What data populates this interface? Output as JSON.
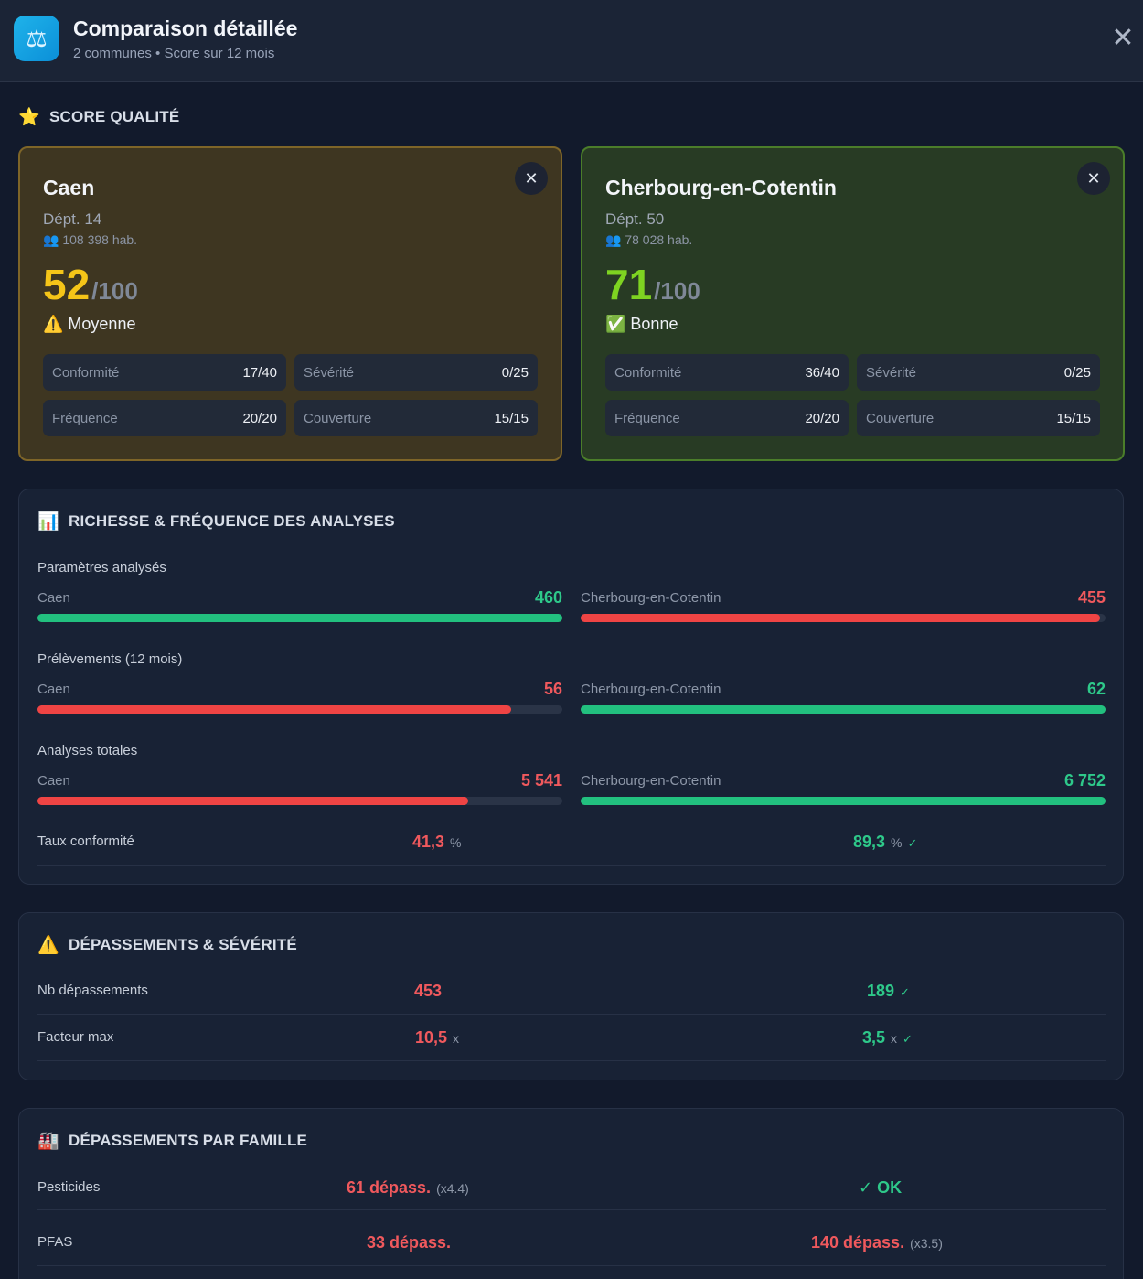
{
  "header": {
    "icon": "scales-icon",
    "title": "Comparaison détaillée",
    "subtitle": "2 communes • Score sur 12 mois",
    "close_label": "✕"
  },
  "score_section": {
    "icon": "⭐",
    "title": "SCORE QUALITÉ"
  },
  "communes": [
    {
      "name": "Caen",
      "dept": "Dépt. 14",
      "population": "👥 108 398 hab.",
      "score": "52",
      "score_max": "/100",
      "score_color": "#f5c518",
      "level": "⚠️ Moyenne",
      "stats": [
        {
          "label": "Conformité",
          "value": "17/40"
        },
        {
          "label": "Sévérité",
          "value": "0/25"
        },
        {
          "label": "Fréquence",
          "value": "20/20"
        },
        {
          "label": "Couverture",
          "value": "15/15"
        }
      ]
    },
    {
      "name": "Cherbourg-en-Cotentin",
      "dept": "Dépt. 50",
      "population": "👥 78 028 hab.",
      "score": "71",
      "score_max": "/100",
      "score_color": "#7ed321",
      "level": "✅ Bonne",
      "stats": [
        {
          "label": "Conformité",
          "value": "36/40"
        },
        {
          "label": "Sévérité",
          "value": "0/25"
        },
        {
          "label": "Fréquence",
          "value": "20/20"
        },
        {
          "label": "Couverture",
          "value": "15/15"
        }
      ]
    }
  ],
  "richesse": {
    "icon": "📊",
    "title": "RICHESSE & FRÉQUENCE DES ANALYSES",
    "metrics": [
      {
        "label": "Paramètres analysés",
        "a_name": "Caen",
        "a_value": "460",
        "b_name": "Cherbourg-en-Cotentin",
        "b_value": "455",
        "a_fill": 1.0,
        "b_fill": 0.989
      },
      {
        "label": "Prélèvements (12 mois)",
        "a_name": "Caen",
        "a_value": "56",
        "b_name": "Cherbourg-en-Cotentin",
        "b_value": "62",
        "a_fill": 0.903,
        "b_fill": 1.0
      },
      {
        "label": "Analyses totales",
        "a_name": "Caen",
        "a_value": "5 541",
        "b_name": "Cherbourg-en-Cotentin",
        "b_value": "6 752",
        "a_fill": 0.821,
        "b_fill": 1.0
      }
    ],
    "taux": {
      "label": "Taux conformité",
      "a_value": "41,3",
      "a_unit": "%",
      "b_value": "89,3",
      "b_unit": "%",
      "check": "✓"
    }
  },
  "depassements": {
    "icon": "⚠️",
    "title": "DÉPASSEMENTS & SÉVÉRITÉ",
    "rows": [
      {
        "label": "Nb dépassements",
        "a_value": "453",
        "b_value": "189",
        "b_check": "✓"
      },
      {
        "label": "Facteur max",
        "a_value": "10,5",
        "a_unit": "x",
        "b_value": "3,5",
        "b_unit": "x",
        "b_check": "✓"
      }
    ]
  },
  "famille": {
    "icon": "🏭",
    "title": "DÉPASSEMENTS PAR FAMILLE",
    "rows": [
      {
        "label": "Pesticides",
        "a_value": "61 dépass.",
        "a_note": "(x4.4)",
        "b_value": "✓ OK",
        "b_note": ""
      },
      {
        "label": "PFAS",
        "a_value": "33 dépass.",
        "a_note": "",
        "b_value": "140 dépass.",
        "b_note": "(x3.5)"
      }
    ]
  },
  "colors": {
    "good": "#2ec98a",
    "bad": "#f0595d",
    "caen_card": "#3e3621",
    "cherbourg_card": "#283b24"
  }
}
